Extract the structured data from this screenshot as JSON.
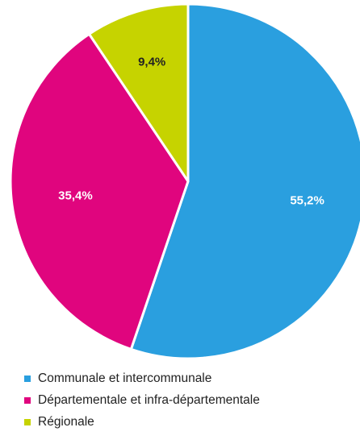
{
  "chart_data": {
    "type": "pie",
    "slices": [
      {
        "label": "Communale et intercommunale",
        "value": 55.2,
        "value_label": "55,2%",
        "color": "#2a9fdf",
        "label_color": "#ffffff"
      },
      {
        "label": "Départementale et infra-départementale",
        "value": 35.4,
        "value_label": "35,4%",
        "color": "#e0057e",
        "label_color": "#ffffff"
      },
      {
        "label": "Régionale",
        "value": 9.4,
        "value_label": "9,4%",
        "color": "#c6d300",
        "label_color": "#222222"
      }
    ],
    "start_angle": "12 o'clock",
    "direction": "clockwise",
    "legend_position": "bottom-left"
  }
}
